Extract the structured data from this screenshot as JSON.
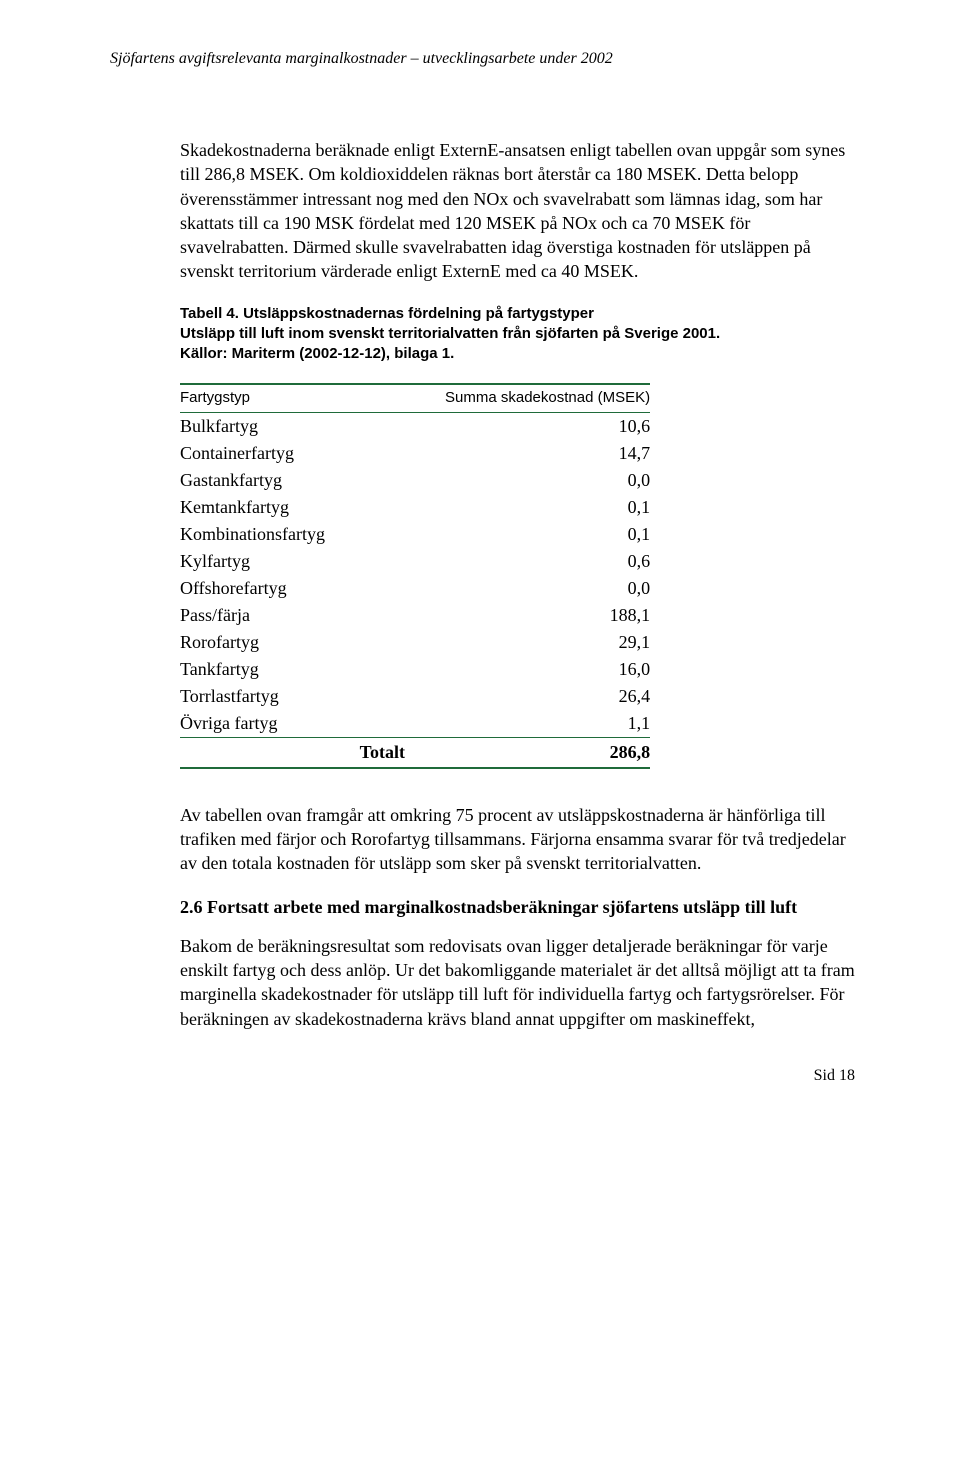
{
  "header": {
    "running_title": "Sjöfartens avgiftsrelevanta marginalkostnader – utvecklingsarbete under 2002"
  },
  "paragraphs": {
    "p1": "Skadekostnaderna beräknade enligt ExternE-ansatsen enligt tabellen ovan uppgår som synes till 286,8 MSEK. Om koldioxiddelen räknas bort återstår ca 180 MSEK. Detta belopp överensstämmer intressant nog med den NOx och svavelrabatt som lämnas idag, som har skattats till  ca 190 MSK fördelat med 120 MSEK på NOx och ca 70 MSEK för svavelrabatten. Därmed skulle svavelrabatten idag överstiga kostnaden för utsläppen på svenskt territorium värderade enligt ExternE med ca 40 MSEK.",
    "p2": "Av tabellen ovan framgår att omkring 75 procent av utsläppskostnaderna är hänförliga till trafiken med färjor och Rorofartyg tillsammans. Färjorna ensamma svarar för två tredjedelar av den totala kostnaden för utsläpp som sker på svenskt territorialvatten.",
    "p3": "Bakom de beräkningsresultat som redovisats ovan ligger detaljerade beräkningar för varje enskilt fartyg och dess anlöp. Ur det bakomliggande materialet är det alltså möjligt att ta fram marginella skadekostnader för utsläpp till luft för individuella fartyg och fartygsrörelser. För beräkningen av skadekostnaderna krävs bland annat uppgifter om maskineffekt,"
  },
  "table": {
    "caption": "Tabell 4. Utsläppskostnadernas fördelning på fartygstyper\nUtsläpp till luft inom svenskt territorialvatten från sjöfarten på Sverige 2001.\nKällor: Mariterm (2002-12-12), bilaga 1.",
    "columns": [
      "Fartygstyp",
      "Summa skadekostnad (MSEK)"
    ],
    "rows": [
      {
        "label": "Bulkfartyg",
        "value": "10,6"
      },
      {
        "label": "Containerfartyg",
        "value": "14,7"
      },
      {
        "label": "Gastankfartyg",
        "value": "0,0"
      },
      {
        "label": "Kemtankfartyg",
        "value": "0,1"
      },
      {
        "label": "Kombinationsfartyg",
        "value": "0,1"
      },
      {
        "label": "Kylfartyg",
        "value": "0,6"
      },
      {
        "label": "Offshorefartyg",
        "value": "0,0"
      },
      {
        "label": "Pass/färja",
        "value": "188,1"
      },
      {
        "label": "Rorofartyg",
        "value": "29,1"
      },
      {
        "label": "Tankfartyg",
        "value": "16,0"
      },
      {
        "label": "Torrlastfartyg",
        "value": "26,4"
      },
      {
        "label": "Övriga fartyg",
        "value": "1,1"
      }
    ],
    "total": {
      "label": "Totalt",
      "value": "286,8"
    },
    "border_color": "#1f6b3a",
    "header_font_family": "Arial",
    "body_font_family": "Times New Roman"
  },
  "section": {
    "heading": "2.6 Fortsatt arbete med marginalkostnadsberäkningar sjöfartens utsläpp till luft"
  },
  "footer": {
    "page_number": "Sid 18"
  }
}
